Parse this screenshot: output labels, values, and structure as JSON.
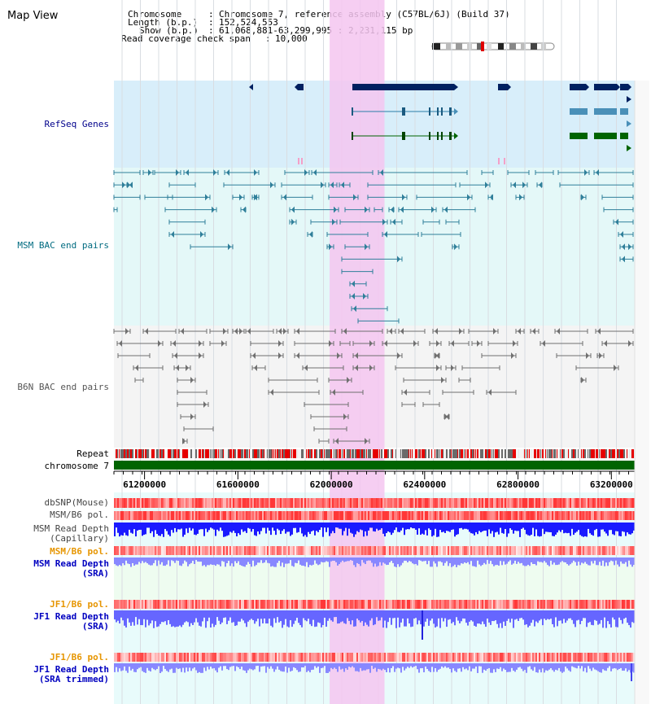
{
  "header": {
    "title": "Map View",
    "info": [
      {
        "key": "Chromosome",
        "value": "Chromosome 7, reference assembly (C57BL/6J) (Build 37)"
      },
      {
        "key": "Length (b.p.)",
        "value": "152,524,553"
      },
      {
        "key": "Show (b.p.)",
        "value": "61,068,881-63,299,995 : 2,231,115 bp"
      },
      {
        "key": "Read coverage check span",
        "value": "10,000"
      }
    ]
  },
  "tracks": {
    "refseq": "RefSeq Genes",
    "msm_bac": "MSM BAC end pairs",
    "b6n_bac": "B6N BAC end pairs",
    "repeat": "Repeat",
    "chromosome": "chromosome 7",
    "dbsnp": "dbSNP(Mouse)",
    "msm_b6_pol_1": "MSM/B6 pol.",
    "msm_depth_cap_1": "MSM Read Depth",
    "msm_depth_cap_2": "(Capillary)",
    "msm_b6_pol_2": "MSM/B6 pol.",
    "msm_depth_sra_1": "MSM Read Depth",
    "msm_depth_sra_2": "(SRA)",
    "jf1_b6_pol_1": "JF1/B6 pol.",
    "jf1_depth_sra_1": "JF1 Read Depth",
    "jf1_depth_sra_2": "(SRA)",
    "jf1_b6_pol_2": "JF1/B6 pol.",
    "jf1_depth_trim_1": "JF1 Read Depth",
    "jf1_depth_trim_2": "(SRA trimmed)"
  },
  "axis": {
    "range": [
      61068881,
      63299995
    ],
    "ticks": [
      61200000,
      61600000,
      62000000,
      62400000,
      62800000,
      63200000
    ],
    "tick_labels": [
      "61200000",
      "61600000",
      "62000000",
      "62400000",
      "62800000",
      "63200000"
    ]
  },
  "highlight": {
    "start": 61993000,
    "end": 62228000
  },
  "colors": {
    "refseq_label": "#00008b",
    "msm_label": "#006b80",
    "b6n_label": "#555555",
    "orange_label": "#e69500",
    "blue_label": "#0000c0",
    "gene_dark": "#002060",
    "gene_mid": "#4a90b8",
    "gene_green": "#006400",
    "msm_pair": "#2f7f9a",
    "b6n_pair": "#707070",
    "highlight": "#f5c6f0",
    "chrom_bar": "#006400"
  }
}
